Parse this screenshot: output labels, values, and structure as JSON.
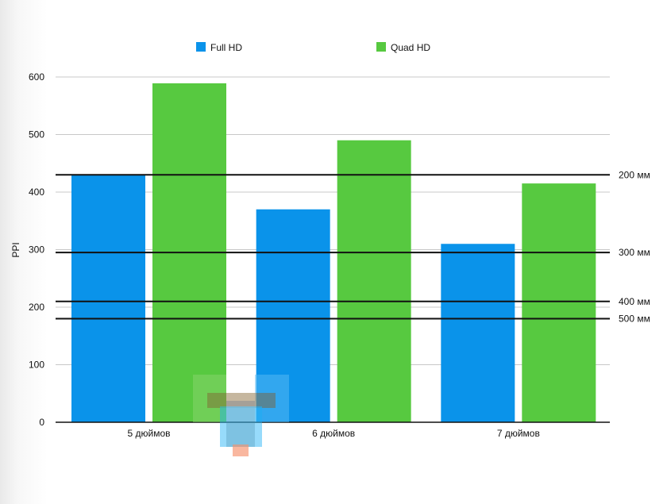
{
  "chart_data": {
    "type": "bar",
    "categories": [
      "5 дюймов",
      "6 дюймов",
      "7 дюймов"
    ],
    "series": [
      {
        "name": "Full HD",
        "color": "#0a93ea",
        "values": [
          430,
          370,
          310
        ]
      },
      {
        "name": "Quad HD",
        "color": "#57c940",
        "values": [
          589,
          490,
          415
        ]
      }
    ],
    "ylabel": "PPI",
    "xlabel": "",
    "ylim": [
      0,
      600
    ],
    "yticks": [
      0,
      100,
      200,
      300,
      400,
      500,
      600
    ],
    "grid": true,
    "legend_position": "top",
    "reference_lines": [
      {
        "label": "200 мм",
        "value": 430
      },
      {
        "label": "300 мм",
        "value": 295
      },
      {
        "label": "400 мм",
        "value": 210
      },
      {
        "label": "500 мм",
        "value": 180
      }
    ]
  },
  "watermark": {
    "icon": "t-logo-icon",
    "colors": [
      "#f26b3a",
      "#ffd600",
      "#29b6f6"
    ]
  }
}
